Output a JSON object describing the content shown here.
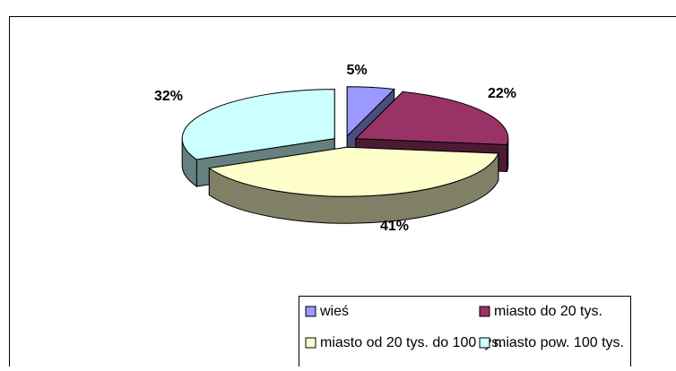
{
  "chart_data": {
    "type": "pie",
    "categories": [
      "wieś",
      "miasto do 20 tys.",
      "miasto od 20 tys. do 100 tys.",
      "miasto pow. 100 tys."
    ],
    "values": [
      5,
      22,
      41,
      32
    ],
    "value_labels": [
      "5%",
      "22%",
      "41%",
      "32%"
    ],
    "colors": [
      "#9999ff",
      "#993366",
      "#ffffcc",
      "#ccffff"
    ],
    "legend": "bottom"
  }
}
